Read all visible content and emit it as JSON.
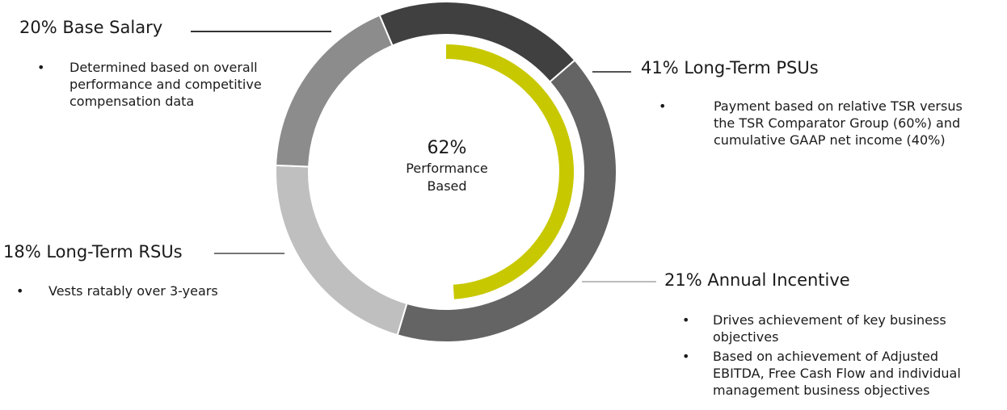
{
  "chart_data": {
    "type": "pie",
    "variant": "donut",
    "slices": [
      {
        "label": "Base Salary",
        "value": 20,
        "color": "#404040",
        "label_text": "20% Base Salary"
      },
      {
        "label": "Long-Term PSUs",
        "value": 41,
        "color": "#646464",
        "label_text": "41% Long-Term PSUs"
      },
      {
        "label": "Annual Incentive",
        "value": 21,
        "color": "#bfbfbf",
        "label_text": "21% Annual Incentive"
      },
      {
        "label": "Long-Term RSUs",
        "value": 18,
        "color": "#8c8c8c",
        "label_text": "18% Long-Term RSUs"
      }
    ],
    "performance_based": {
      "value": 62,
      "color": "#c8c800"
    },
    "center": {
      "pct": "62%",
      "line1": "Performance",
      "line2": "Based"
    }
  },
  "bullets": {
    "base_salary": [
      "Determined based on overall performance and competitive compensation data"
    ],
    "psus": [
      "Payment based on relative TSR versus the TSR Comparator Group (60%) and cumulative GAAP net income (40%)"
    ],
    "annual": [
      "Drives achievement of key business objectives",
      "Based on achievement of Adjusted EBITDA, Free Cash Flow and individual management business objectives"
    ],
    "rsus": [
      "Vests ratably over 3-years"
    ]
  },
  "bullet_symbol": "•"
}
